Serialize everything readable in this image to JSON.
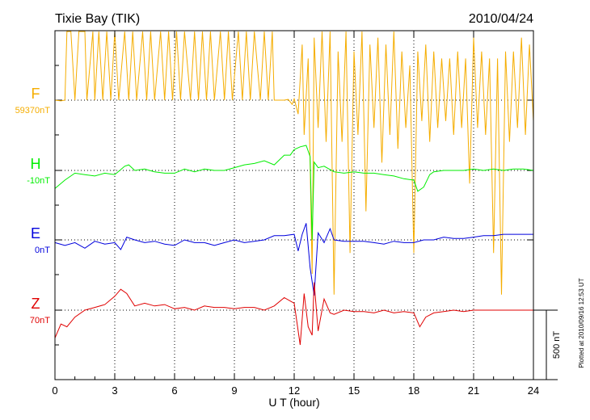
{
  "header": {
    "station": "Tixie Bay (TIK)",
    "date": "2010/04/24"
  },
  "footer": {
    "plotted": "Plotted at 2010/09/16 12:53 UT"
  },
  "scale_bar": {
    "label": "500 nT",
    "value_nT": 500
  },
  "colors": {
    "F": "#f5ad00",
    "H": "#00ee00",
    "E": "#0000dd",
    "Z": "#e00000",
    "axis": "#000000"
  },
  "chart_data": {
    "type": "line",
    "title": "Tixie Bay (TIK)",
    "xlabel": "U T (hour)",
    "xlim": [
      0,
      24
    ],
    "xticks": [
      "0",
      "3",
      "6",
      "9",
      "12",
      "15",
      "18",
      "21",
      "24"
    ],
    "grid": true,
    "series": [
      {
        "name": "F",
        "baseline_label": "59370nT",
        "x": [
          0.0,
          0.3,
          0.5,
          0.6,
          0.8,
          1.0,
          1.2,
          1.5,
          1.6,
          1.9,
          2.0,
          2.2,
          2.4,
          2.6,
          2.8,
          3.0,
          3.2,
          3.5,
          3.7,
          3.9,
          4.1,
          4.4,
          4.6,
          4.8,
          5.0,
          5.3,
          5.5,
          5.7,
          5.9,
          6.1,
          6.3,
          6.5,
          6.8,
          7.0,
          7.2,
          7.4,
          7.6,
          7.8,
          8.0,
          8.3,
          8.5,
          8.7,
          8.9,
          9.2,
          9.4,
          9.6,
          9.8,
          10.0,
          10.3,
          10.5,
          10.7,
          10.9,
          11.0,
          11.3,
          11.5,
          11.7,
          11.9,
          12.0,
          12.2,
          12.4,
          12.5,
          12.7,
          12.9,
          13.0,
          13.2,
          13.4,
          13.6,
          13.8,
          14.0,
          14.2,
          14.4,
          14.6,
          14.8,
          15.0,
          15.2,
          15.4,
          15.6,
          15.8,
          16.0,
          16.2,
          16.4,
          16.6,
          16.8,
          17.0,
          17.2,
          17.4,
          17.6,
          17.8,
          18.0,
          18.2,
          18.4,
          18.6,
          18.8,
          19.0,
          19.2,
          19.4,
          19.6,
          19.8,
          20.0,
          20.2,
          20.4,
          20.6,
          20.8,
          21.0,
          21.2,
          21.4,
          21.6,
          21.8,
          22.0,
          22.2,
          22.4,
          22.6,
          22.8,
          23.0,
          23.2,
          23.4,
          23.6,
          23.8,
          24.0
        ],
        "values": [
          0,
          -5,
          0,
          500,
          500,
          0,
          520,
          530,
          0,
          540,
          0,
          540,
          0,
          540,
          0,
          580,
          0,
          600,
          0,
          590,
          0,
          580,
          0,
          560,
          0,
          570,
          0,
          560,
          0,
          600,
          0,
          590,
          0,
          560,
          0,
          570,
          0,
          570,
          0,
          560,
          0,
          560,
          0,
          560,
          0,
          560,
          0,
          560,
          0,
          580,
          0,
          560,
          0,
          0,
          0,
          5,
          -30,
          10,
          -100,
          400,
          -250,
          300,
          -1250,
          450,
          -200,
          550,
          -300,
          500,
          -1400,
          350,
          -300,
          500,
          -1100,
          350,
          -250,
          500,
          -800,
          400,
          -200,
          450,
          -450,
          400,
          -250,
          500,
          -350,
          350,
          -200,
          250,
          -1100,
          350,
          -150,
          400,
          -300,
          350,
          -200,
          300,
          -150,
          300,
          -250,
          350,
          -200,
          300,
          -600,
          450,
          -200,
          350,
          -250,
          300,
          -1100,
          300,
          -1400,
          350,
          -300,
          350,
          -200,
          450,
          -250,
          400,
          -150
        ]
      },
      {
        "name": "H",
        "baseline_label": "-10nT",
        "x": [
          0.0,
          0.5,
          1.0,
          1.5,
          2.0,
          2.5,
          3.0,
          3.5,
          3.7,
          4.0,
          4.5,
          5.0,
          5.5,
          6.0,
          6.5,
          7.0,
          7.5,
          8.0,
          8.5,
          9.0,
          9.5,
          10.0,
          10.5,
          11.0,
          11.5,
          11.8,
          12.0,
          12.3,
          12.6,
          12.8,
          12.9,
          13.0,
          13.2,
          13.5,
          14.0,
          14.5,
          15.0,
          15.5,
          16.0,
          16.5,
          17.0,
          17.5,
          18.0,
          18.2,
          18.5,
          18.8,
          19.0,
          19.5,
          20.0,
          20.5,
          21.0,
          21.5,
          22.0,
          22.5,
          23.0,
          23.5,
          24.0
        ],
        "values": [
          -130,
          -70,
          -20,
          -30,
          -40,
          -20,
          -30,
          30,
          40,
          0,
          10,
          -10,
          -20,
          -20,
          10,
          -10,
          10,
          0,
          0,
          20,
          40,
          50,
          70,
          40,
          110,
          110,
          150,
          170,
          180,
          100,
          -500,
          60,
          20,
          30,
          -10,
          -20,
          -10,
          -20,
          -20,
          -30,
          -40,
          -60,
          -70,
          -150,
          -120,
          -30,
          -10,
          0,
          0,
          0,
          10,
          0,
          10,
          0,
          10,
          10,
          0
        ]
      },
      {
        "name": "E",
        "baseline_label": "0nT",
        "x": [
          0.0,
          0.5,
          1.0,
          1.5,
          2.0,
          2.5,
          3.0,
          3.3,
          3.6,
          4.0,
          4.5,
          5.0,
          5.5,
          6.0,
          6.5,
          7.0,
          7.5,
          8.0,
          8.5,
          9.0,
          9.5,
          10.0,
          10.5,
          11.0,
          11.5,
          12.0,
          12.2,
          12.4,
          12.6,
          12.8,
          13.0,
          13.2,
          13.5,
          13.8,
          14.0,
          14.5,
          15.0,
          15.5,
          16.0,
          16.5,
          17.0,
          17.5,
          18.0,
          18.5,
          19.0,
          19.5,
          20.0,
          20.5,
          21.0,
          21.5,
          22.0,
          22.5,
          23.0,
          23.5,
          24.0
        ],
        "values": [
          -20,
          -40,
          -20,
          -60,
          -10,
          -30,
          -20,
          -70,
          20,
          0,
          -20,
          -10,
          -30,
          -40,
          0,
          -20,
          -20,
          -40,
          -20,
          0,
          -20,
          -10,
          0,
          30,
          30,
          40,
          -80,
          40,
          120,
          -200,
          -400,
          50,
          -20,
          80,
          0,
          -10,
          -10,
          -10,
          -20,
          -30,
          -10,
          -20,
          -20,
          0,
          0,
          20,
          10,
          10,
          20,
          30,
          30,
          40,
          40,
          40,
          40
        ]
      },
      {
        "name": "Z",
        "baseline_label": "70nT",
        "x": [
          0.0,
          0.3,
          0.6,
          1.0,
          1.5,
          2.0,
          2.5,
          3.0,
          3.3,
          3.6,
          4.0,
          4.5,
          5.0,
          5.5,
          6.0,
          6.5,
          7.0,
          7.5,
          8.0,
          8.5,
          9.0,
          9.5,
          10.0,
          10.5,
          11.0,
          11.5,
          12.0,
          12.3,
          12.5,
          12.7,
          12.9,
          13.0,
          13.2,
          13.5,
          13.8,
          14.0,
          14.5,
          15.0,
          15.5,
          16.0,
          16.5,
          17.0,
          17.5,
          18.0,
          18.3,
          18.6,
          19.0,
          19.5,
          20.0,
          20.5,
          21.0,
          21.5,
          22.0,
          22.5,
          23.0,
          23.5,
          24.0
        ],
        "values": [
          -200,
          -100,
          -120,
          -50,
          0,
          20,
          40,
          100,
          150,
          120,
          30,
          50,
          30,
          40,
          10,
          20,
          0,
          30,
          20,
          20,
          10,
          20,
          20,
          0,
          30,
          90,
          50,
          -250,
          120,
          -120,
          -180,
          200,
          -150,
          80,
          -20,
          -30,
          0,
          -10,
          -10,
          -20,
          0,
          -20,
          -10,
          -20,
          -120,
          -50,
          -20,
          -10,
          0,
          -10,
          0,
          0,
          0,
          0,
          0,
          0,
          0
        ]
      }
    ]
  }
}
